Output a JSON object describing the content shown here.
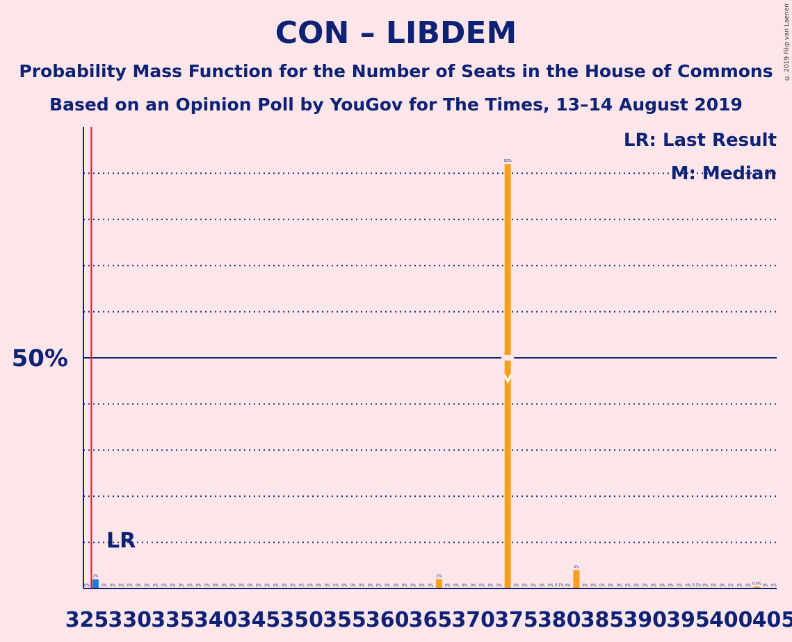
{
  "title": "CON – LIBDEM",
  "subtitle": "Probability Mass Function for the Number of Seats in the House of Commons",
  "subtitle2": "Based on an Opinion Poll by YouGov for The Times, 13–14 August 2019",
  "copyright": "© 2019 Filip van Laenen",
  "legend": {
    "last_result": "LR: Last Result",
    "median": "M: Median"
  },
  "lr_label": "LR",
  "colors": {
    "background": "#fde6ea",
    "text": "#0d2175",
    "below_lr": "#1a7fd4",
    "above_lr": "#f7a020",
    "last_result_line": "#e0181f",
    "axis": "#0d2175"
  },
  "chart_data": {
    "type": "bar",
    "x_start": 325,
    "x_end": 405,
    "xticks": [
      "325",
      "330",
      "335",
      "340",
      "345",
      "350",
      "355",
      "360",
      "365",
      "370",
      "375",
      "380",
      "385",
      "390",
      "395",
      "400",
      "405"
    ],
    "ylabel_tick": "50%",
    "ylim": [
      0,
      100
    ],
    "gridlines": [
      10,
      20,
      30,
      40,
      60,
      70,
      80,
      90
    ],
    "fifty_line": 50,
    "last_result": 326,
    "median": 374,
    "bars": [
      {
        "seats": 326,
        "value": 2,
        "label": "2%"
      },
      {
        "seats": 366,
        "value": 2,
        "label": "2%"
      },
      {
        "seats": 374,
        "value": 92,
        "label": "92%"
      },
      {
        "seats": 380,
        "value": 0.1,
        "label": "0.1%"
      },
      {
        "seats": 382,
        "value": 4,
        "label": "4%"
      },
      {
        "seats": 396,
        "value": 0.1,
        "label": "0.1%"
      },
      {
        "seats": 403,
        "value": 0.4,
        "label": "0.4%"
      }
    ],
    "zero_label": "0%"
  }
}
